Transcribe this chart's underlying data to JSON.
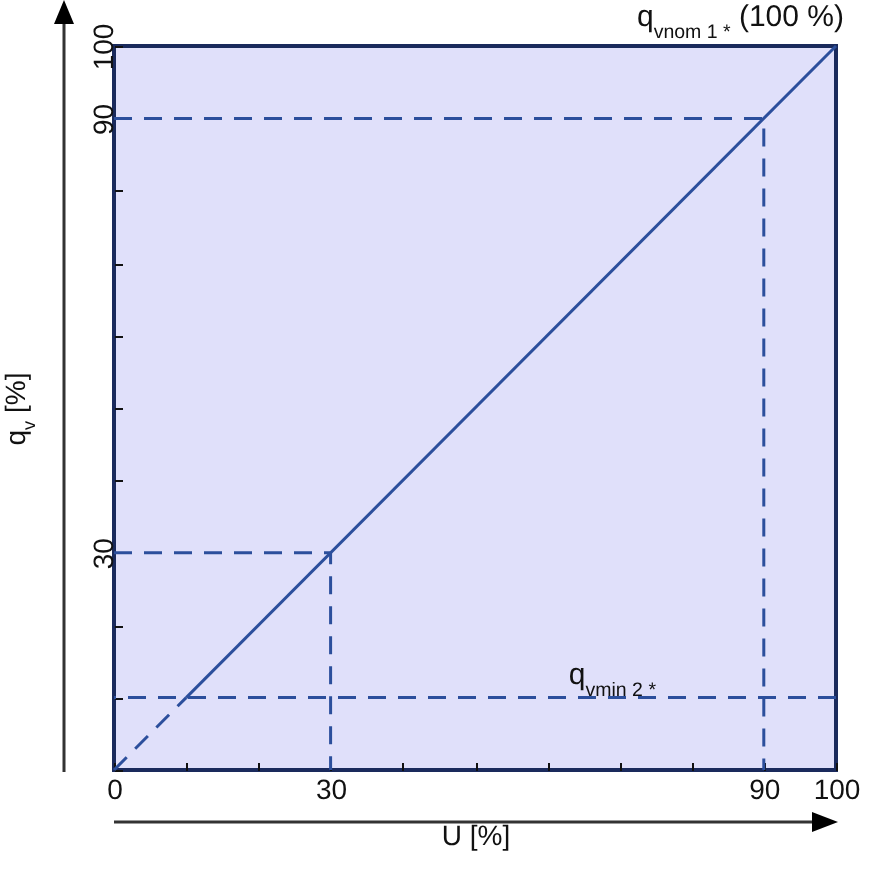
{
  "chart_data": {
    "type": "line",
    "xlabel": "U [%]",
    "ylabel": "q$_{v}$ [%]",
    "xlim": [
      0,
      100
    ],
    "ylim": [
      0,
      100
    ],
    "xticks": [
      0,
      {
        "value": 10,
        "label": null
      },
      {
        "value": 20,
        "label": null
      },
      30,
      {
        "value": 40,
        "label": null
      },
      {
        "value": 50,
        "label": null
      },
      {
        "value": 60,
        "label": null
      },
      {
        "value": 70,
        "label": null
      },
      {
        "value": 80,
        "label": null
      },
      90,
      100
    ],
    "yticks": [
      {
        "value": 0,
        "label": null
      },
      {
        "value": 10,
        "label": null
      },
      {
        "value": 20,
        "label": null
      },
      30,
      {
        "value": 40,
        "label": null
      },
      {
        "value": 50,
        "label": null
      },
      {
        "value": 60,
        "label": null
      },
      {
        "value": 70,
        "label": null
      },
      {
        "value": 80,
        "label": null
      },
      90,
      100
    ],
    "series": [
      {
        "color": "#2c4f9c",
        "x": [
          0,
          10
        ],
        "values": [
          0,
          10
        ],
        "line_style": "dashed"
      },
      {
        "color": "#2c4f9c",
        "x": [
          10,
          100
        ],
        "values": [
          10,
          100
        ],
        "line_style": "solid"
      },
      {
        "color": "#2c4f9c",
        "x": [
          0,
          30,
          30
        ],
        "values": [
          30,
          30,
          0
        ],
        "line_style": "dashed"
      },
      {
        "color": "#2c4f9c",
        "x": [
          0,
          90,
          90
        ],
        "values": [
          90,
          90,
          0
        ],
        "line_style": "dashed"
      }
    ],
    "ref_lines": [
      {
        "axis": "y",
        "value": 10,
        "label": "q$_{vmin 2 *}$",
        "color": "#2c4f9c",
        "line_style": "dashed"
      }
    ],
    "annotations": [
      {
        "text": "q$_{vnom 1 *}$ (100 %)",
        "x": 100,
        "y": 100
      }
    ],
    "grid": false,
    "marker": "none"
  }
}
